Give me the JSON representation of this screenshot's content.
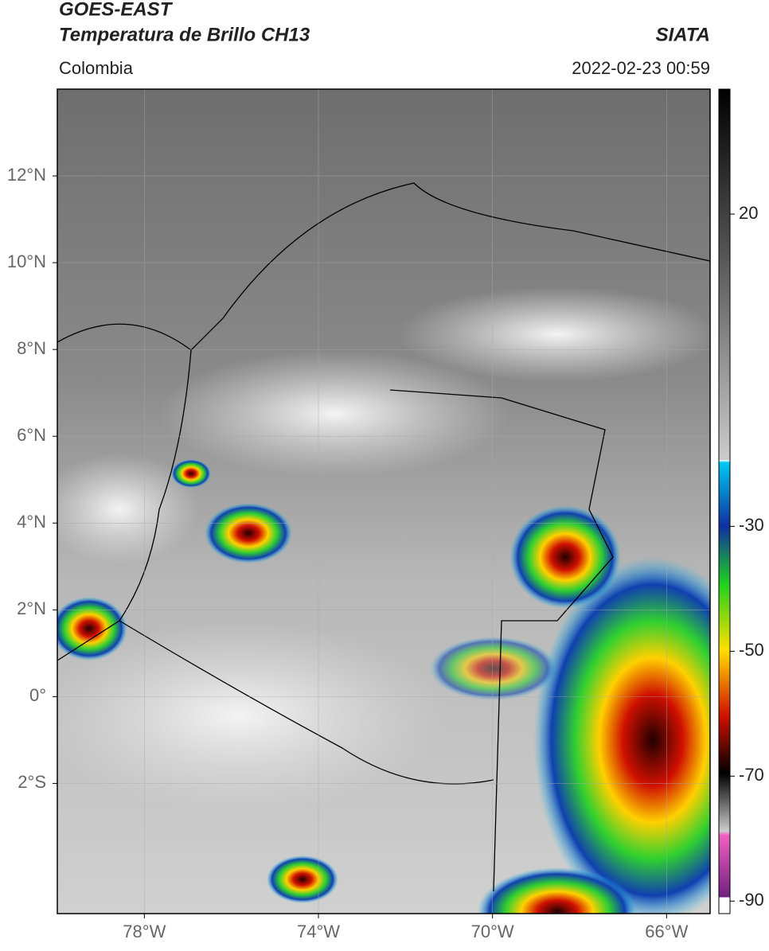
{
  "header": {
    "title": "GOES-EAST",
    "subtitle": "Temperatura de Brillo CH13",
    "region": "Colombia",
    "source": "SIATA",
    "datetime": "2022-02-23 00:59"
  },
  "map": {
    "lon_range": [
      -80,
      -65
    ],
    "lat_range": [
      -5,
      14
    ],
    "xticks": [
      {
        "value": -78,
        "label": "78°W"
      },
      {
        "value": -74,
        "label": "74°W"
      },
      {
        "value": -70,
        "label": "70°W"
      },
      {
        "value": -66,
        "label": "66°W"
      }
    ],
    "yticks": [
      {
        "value": 12,
        "label": "12°N"
      },
      {
        "value": 10,
        "label": "10°N"
      },
      {
        "value": 8,
        "label": "8°N"
      },
      {
        "value": 6,
        "label": "6°N"
      },
      {
        "value": 4,
        "label": "4°N"
      },
      {
        "value": 2,
        "label": "2°N"
      },
      {
        "value": 0,
        "label": "0°"
      },
      {
        "value": -2,
        "label": "2°S"
      }
    ]
  },
  "colorbar": {
    "range": [
      -92,
      40
    ],
    "ticks": [
      20,
      -30,
      -50,
      -70,
      -90
    ]
  }
}
